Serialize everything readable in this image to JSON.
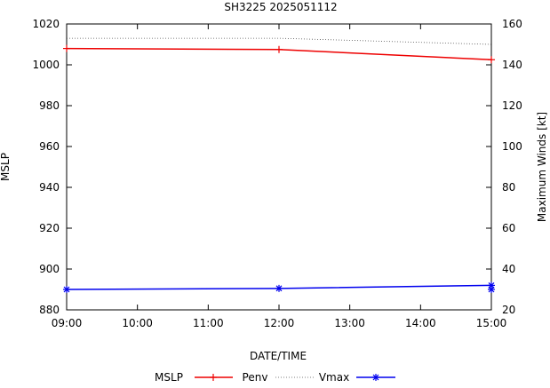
{
  "chart_data": {
    "type": "line",
    "title": "SH3225 2025051112",
    "xlabel": "DATE/TIME",
    "ylabel": "MSLP",
    "y2label": "Maximum Winds [kt]",
    "x_ticks": [
      "09:00",
      "10:00",
      "11:00",
      "12:00",
      "13:00",
      "14:00",
      "15:00"
    ],
    "x_hours": [
      9,
      10,
      11,
      12,
      13,
      14,
      15
    ],
    "xlim": [
      9,
      15
    ],
    "ylim": [
      880,
      1020
    ],
    "y_ticks": [
      880,
      900,
      920,
      940,
      960,
      980,
      1000,
      1020
    ],
    "y2lim": [
      20,
      160
    ],
    "y2_ticks": [
      20,
      40,
      60,
      80,
      100,
      120,
      140,
      160
    ],
    "grid": false,
    "legend_position": "bottom",
    "legend_labels": [
      "MSLP",
      "Penv",
      "Vmax"
    ],
    "series": [
      {
        "name": "MSLP",
        "axis": "left",
        "color": "#ee0000",
        "marker": "plus",
        "x": [
          9,
          12,
          15
        ],
        "values": [
          1008,
          1007.5,
          1002.5
        ]
      },
      {
        "name": "Penv",
        "axis": "left",
        "color": "#555555",
        "style": "dotted",
        "marker": "none",
        "x": [
          9,
          12,
          15
        ],
        "values": [
          1013,
          1013,
          1010
        ]
      },
      {
        "name": "Vmax",
        "axis": "right",
        "color": "#0000ee",
        "marker": "star",
        "x": [
          9,
          12,
          15
        ],
        "values": [
          30,
          30.5,
          32
        ],
        "extra_points": [
          {
            "x": 15,
            "value": 30
          }
        ]
      }
    ]
  }
}
